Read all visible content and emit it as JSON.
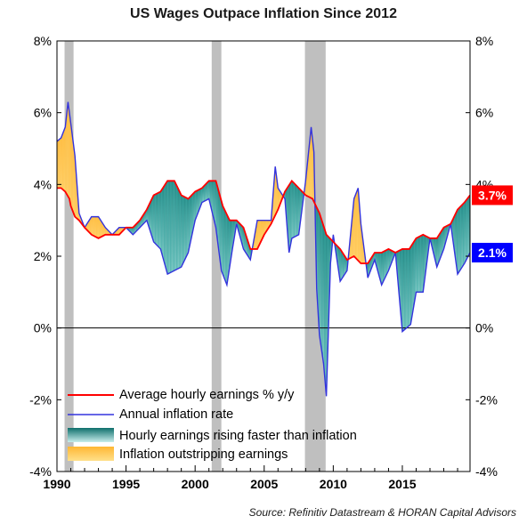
{
  "chart_data": {
    "type": "line",
    "title": "US Wages Outpace Inflation Since 2012",
    "source": "Source: Refinitiv Datastream & HORAN Capital Advisors",
    "xlim": [
      1990,
      2019.9
    ],
    "ylim": [
      -4,
      8
    ],
    "x_ticks": [
      1990,
      1995,
      2000,
      2005,
      2010,
      2015
    ],
    "x_tick_labels": [
      "1990",
      "1995",
      "2000",
      "2005",
      "2010",
      "2015"
    ],
    "y_ticks": [
      -4,
      -2,
      0,
      2,
      4,
      6,
      8
    ],
    "y_tick_labels": [
      "-4%",
      "-2%",
      "0%",
      "2%",
      "4%",
      "6%",
      "8%"
    ],
    "recessions": [
      [
        1990.55,
        1991.2
      ],
      [
        2001.2,
        2001.9
      ],
      [
        2007.95,
        2009.45
      ]
    ],
    "legend": {
      "placement": "bottom-left",
      "entries": [
        "Average hourly earnings % y/y",
        "Annual inflation rate",
        "Hourly earnings rising faster than inflation",
        "Inflation outstripping earnings"
      ]
    },
    "end_labels": {
      "wages": {
        "text": "3.7%",
        "value": 3.7,
        "color": "#ff0000"
      },
      "inflation": {
        "text": "2.1%",
        "value": 2.1,
        "color": "#0000ff"
      }
    },
    "colors": {
      "wages": "#ff0000",
      "inflation": "#3333dd",
      "wages_above": "#2a9d98",
      "inflation_above": "#ffc34d",
      "recession": "#bfbfbf"
    },
    "series": [
      {
        "name": "Average hourly earnings % y/y",
        "x": [
          1990.0,
          1990.3,
          1990.6,
          1990.9,
          1991.0,
          1991.3,
          1991.6,
          1992.0,
          1992.5,
          1993.0,
          1993.5,
          1994.0,
          1994.5,
          1995.0,
          1995.5,
          1996.0,
          1996.5,
          1997.0,
          1997.5,
          1998.0,
          1998.5,
          1999.0,
          1999.5,
          2000.0,
          2000.5,
          2001.0,
          2001.5,
          2002.0,
          2002.5,
          2003.0,
          2003.5,
          2004.0,
          2004.5,
          2005.0,
          2005.5,
          2006.0,
          2006.5,
          2007.0,
          2007.5,
          2008.0,
          2008.5,
          2009.0,
          2009.5,
          2010.0,
          2010.5,
          2011.0,
          2011.5,
          2012.0,
          2012.5,
          2013.0,
          2013.5,
          2014.0,
          2014.5,
          2015.0,
          2015.5,
          2016.0,
          2016.5,
          2017.0,
          2017.5,
          2018.0,
          2018.5,
          2019.0,
          2019.5,
          2019.9
        ],
        "values": [
          3.9,
          3.9,
          3.8,
          3.6,
          3.4,
          3.1,
          3.0,
          2.8,
          2.6,
          2.5,
          2.6,
          2.6,
          2.6,
          2.8,
          2.8,
          3.0,
          3.3,
          3.7,
          3.8,
          4.1,
          4.1,
          3.7,
          3.6,
          3.8,
          3.9,
          4.1,
          4.1,
          3.4,
          3.0,
          3.0,
          2.8,
          2.2,
          2.2,
          2.6,
          2.9,
          3.3,
          3.8,
          4.1,
          3.9,
          3.7,
          3.6,
          3.2,
          2.6,
          2.4,
          2.2,
          1.9,
          2.0,
          1.8,
          1.8,
          2.1,
          2.1,
          2.2,
          2.1,
          2.2,
          2.2,
          2.5,
          2.6,
          2.5,
          2.5,
          2.8,
          2.9,
          3.3,
          3.5,
          3.7
        ]
      },
      {
        "name": "Annual inflation rate",
        "x": [
          1990.0,
          1990.3,
          1990.6,
          1990.8,
          1991.0,
          1991.3,
          1991.6,
          1992.0,
          1992.5,
          1993.0,
          1993.5,
          1994.0,
          1994.5,
          1995.0,
          1995.5,
          1996.0,
          1996.5,
          1997.0,
          1997.5,
          1998.0,
          1998.5,
          1999.0,
          1999.5,
          2000.0,
          2000.5,
          2001.0,
          2001.5,
          2001.9,
          2002.3,
          2002.7,
          2003.0,
          2003.5,
          2004.0,
          2004.5,
          2005.0,
          2005.5,
          2005.8,
          2006.0,
          2006.5,
          2006.8,
          2007.0,
          2007.5,
          2008.0,
          2008.4,
          2008.6,
          2008.8,
          2009.0,
          2009.3,
          2009.5,
          2009.8,
          2010.0,
          2010.5,
          2011.0,
          2011.5,
          2011.8,
          2012.0,
          2012.5,
          2013.0,
          2013.5,
          2014.0,
          2014.5,
          2015.0,
          2015.3,
          2015.6,
          2016.0,
          2016.5,
          2017.0,
          2017.5,
          2018.0,
          2018.5,
          2019.0,
          2019.5,
          2019.9
        ],
        "values": [
          5.2,
          5.3,
          5.6,
          6.3,
          5.7,
          4.8,
          3.2,
          2.8,
          3.1,
          3.1,
          2.8,
          2.6,
          2.8,
          2.8,
          2.6,
          2.8,
          3.0,
          2.4,
          2.2,
          1.5,
          1.6,
          1.7,
          2.1,
          3.0,
          3.5,
          3.6,
          2.8,
          1.6,
          1.2,
          2.2,
          2.9,
          2.2,
          1.9,
          3.0,
          3.0,
          3.0,
          4.5,
          3.9,
          3.6,
          2.1,
          2.5,
          2.6,
          4.1,
          5.6,
          4.9,
          1.1,
          -0.2,
          -1.0,
          -1.9,
          1.8,
          2.6,
          1.3,
          1.6,
          3.6,
          3.9,
          2.9,
          1.4,
          1.9,
          1.2,
          1.6,
          2.1,
          -0.1,
          0.0,
          0.1,
          1.0,
          1.0,
          2.5,
          1.7,
          2.2,
          2.9,
          1.5,
          1.8,
          2.1
        ]
      }
    ]
  }
}
